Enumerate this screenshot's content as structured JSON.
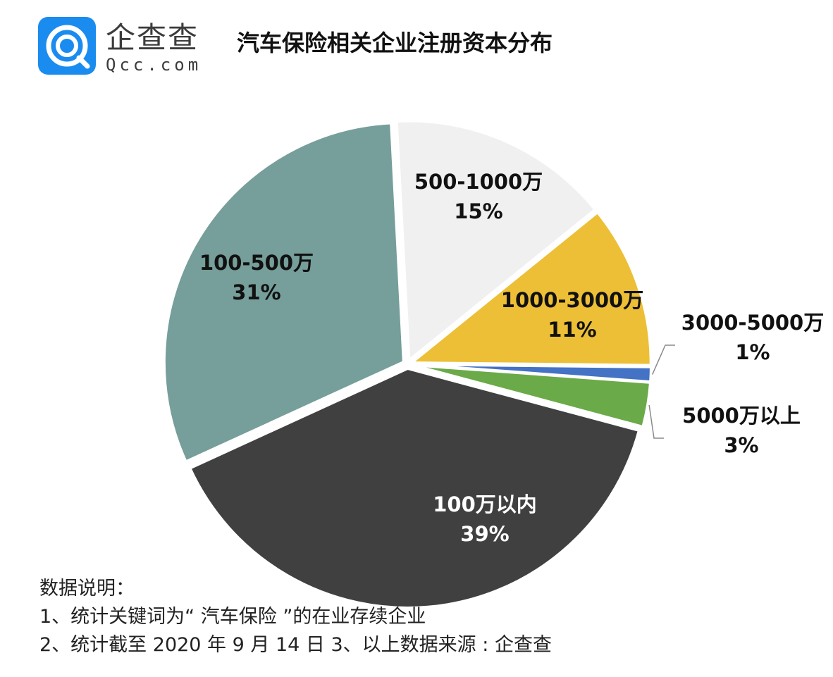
{
  "brand": {
    "name": "企查查",
    "domain": "Qcc.com"
  },
  "colors": {
    "brand_blue": "#1a8cf0"
  },
  "chart_data": {
    "type": "pie",
    "title": "汽车保险相关企业注册资本分布",
    "slices": [
      {
        "label": "500-1000万",
        "pct_label": "15%",
        "value": 15,
        "color": "#f0f0f0",
        "text_color": "#111111"
      },
      {
        "label": "1000-3000万",
        "pct_label": "11%",
        "value": 11,
        "color": "#ecbf36",
        "text_color": "#111111"
      },
      {
        "label": "3000-5000万",
        "pct_label": "1%",
        "value": 1,
        "color": "#4472c4",
        "text_color": "#111111"
      },
      {
        "label": "5000万以上",
        "pct_label": "3%",
        "value": 3,
        "color": "#6aaa48",
        "text_color": "#111111"
      },
      {
        "label": "100万以内",
        "pct_label": "39%",
        "value": 39,
        "color": "#404040",
        "text_color": "#ffffff"
      },
      {
        "label": "100-500万",
        "pct_label": "31%",
        "value": 31,
        "color": "#769e9a",
        "text_color": "#111111"
      }
    ]
  },
  "notes": {
    "heading": "数据说明：",
    "line1": "1、统计关键词为“ 汽车保险 ”的在业存续企业",
    "line2": "2、统计截至 2020 年 9 月 14 日  3、以上数据来源 : 企查查"
  }
}
